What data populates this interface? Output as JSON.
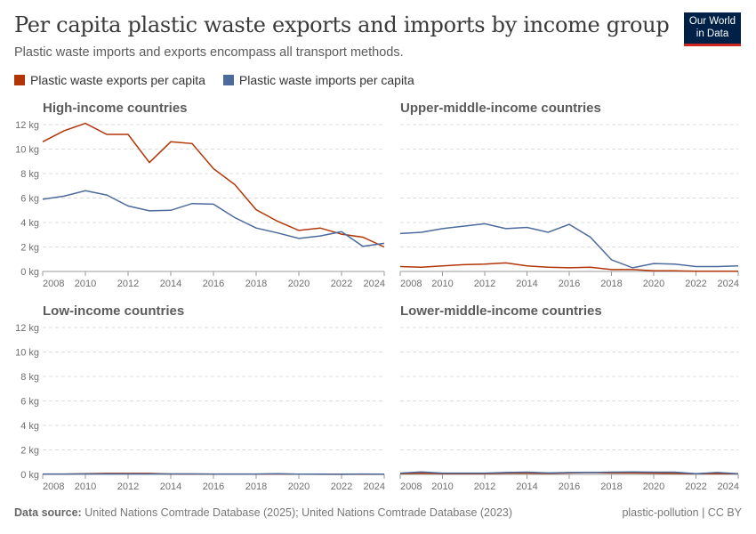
{
  "header": {
    "title": "Per capita plastic waste exports and imports by income group",
    "subtitle": "Plastic waste imports and exports encompass all transport methods.",
    "logo": "Our World in Data"
  },
  "legend": [
    {
      "label": "Plastic waste exports per capita",
      "color": "#b13507"
    },
    {
      "label": "Plastic waste imports per capita",
      "color": "#4c6a9c"
    }
  ],
  "footer": {
    "source_label": "Data source:",
    "source": "United Nations Comtrade Database (2025); United Nations Comtrade Database (2023)",
    "right": "plastic-pollution | CC BY"
  },
  "chart_data": [
    {
      "type": "line",
      "title": "High-income countries",
      "x": [
        2008,
        2009,
        2010,
        2011,
        2012,
        2013,
        2014,
        2015,
        2016,
        2017,
        2018,
        2019,
        2020,
        2021,
        2022,
        2023,
        2024
      ],
      "ylim": [
        0,
        12
      ],
      "yticks": [
        "0 kg",
        "2 kg",
        "4 kg",
        "6 kg",
        "8 kg",
        "10 kg",
        "12 kg"
      ],
      "xticks": [
        "2008",
        "2010",
        "2012",
        "2014",
        "2016",
        "2018",
        "2020",
        "2022",
        "2024"
      ],
      "grid": true,
      "series": [
        {
          "name": "Plastic waste exports per capita",
          "values": [
            10.6,
            11.5,
            12.1,
            11.2,
            11.2,
            8.9,
            10.6,
            10.45,
            8.4,
            7.1,
            5.05,
            4.1,
            3.35,
            3.55,
            3.05,
            2.8,
            2.0
          ]
        },
        {
          "name": "Plastic waste imports per capita",
          "values": [
            5.9,
            6.15,
            6.6,
            6.25,
            5.35,
            4.95,
            5.0,
            5.55,
            5.5,
            4.4,
            3.55,
            3.15,
            2.7,
            2.9,
            3.25,
            2.05,
            2.3
          ]
        }
      ]
    },
    {
      "type": "line",
      "title": "Upper-middle-income countries",
      "x": [
        2008,
        2009,
        2010,
        2011,
        2012,
        2013,
        2014,
        2015,
        2016,
        2017,
        2018,
        2019,
        2020,
        2021,
        2022,
        2023,
        2024
      ],
      "ylim": [
        0,
        12
      ],
      "xticks": [
        "2008",
        "2010",
        "2012",
        "2014",
        "2016",
        "2018",
        "2020",
        "2022",
        "2024"
      ],
      "grid": true,
      "series": [
        {
          "name": "Plastic waste exports per capita",
          "values": [
            0.4,
            0.35,
            0.45,
            0.55,
            0.6,
            0.7,
            0.45,
            0.35,
            0.3,
            0.35,
            0.15,
            0.15,
            0.05,
            0.05,
            0.02,
            0.02,
            0.02
          ]
        },
        {
          "name": "Plastic waste imports per capita",
          "values": [
            3.1,
            3.2,
            3.5,
            3.7,
            3.9,
            3.5,
            3.6,
            3.2,
            3.85,
            2.8,
            0.95,
            0.3,
            0.65,
            0.6,
            0.4,
            0.4,
            0.45
          ]
        }
      ]
    },
    {
      "type": "line",
      "title": "Low-income countries",
      "x": [
        2008,
        2009,
        2010,
        2011,
        2012,
        2013,
        2014,
        2015,
        2016,
        2017,
        2018,
        2019,
        2020,
        2021,
        2022,
        2023,
        2024
      ],
      "ylim": [
        0,
        12
      ],
      "yticks": [
        "0 kg",
        "2 kg",
        "4 kg",
        "6 kg",
        "8 kg",
        "10 kg",
        "12 kg"
      ],
      "xticks": [
        "2008",
        "2010",
        "2012",
        "2014",
        "2016",
        "2018",
        "2020",
        "2022",
        "2024"
      ],
      "grid": true,
      "series": [
        {
          "name": "Plastic waste exports per capita",
          "values": [
            0.02,
            0.02,
            0.05,
            0.08,
            0.08,
            0.08,
            0.03,
            0.03,
            0.02,
            0.02,
            0.02,
            0.03,
            0.02,
            0.01,
            0.01,
            0.01,
            0.01
          ]
        },
        {
          "name": "Plastic waste imports per capita",
          "values": [
            0.03,
            0.03,
            0.04,
            0.04,
            0.04,
            0.04,
            0.04,
            0.04,
            0.03,
            0.03,
            0.03,
            0.05,
            0.02,
            0.02,
            0.01,
            0.03,
            0.02
          ]
        }
      ]
    },
    {
      "type": "line",
      "title": "Lower-middle-income countries",
      "x": [
        2008,
        2009,
        2010,
        2011,
        2012,
        2013,
        2014,
        2015,
        2016,
        2017,
        2018,
        2019,
        2020,
        2021,
        2022,
        2023,
        2024
      ],
      "ylim": [
        0,
        12
      ],
      "xticks": [
        "2008",
        "2010",
        "2012",
        "2014",
        "2016",
        "2018",
        "2020",
        "2022",
        "2024"
      ],
      "grid": true,
      "series": [
        {
          "name": "Plastic waste exports per capita",
          "values": [
            0.05,
            0.1,
            0.05,
            0.06,
            0.06,
            0.1,
            0.1,
            0.08,
            0.12,
            0.15,
            0.12,
            0.12,
            0.1,
            0.08,
            0.05,
            0.06,
            0.05
          ]
        },
        {
          "name": "Plastic waste imports per capita",
          "values": [
            0.1,
            0.2,
            0.1,
            0.1,
            0.1,
            0.15,
            0.18,
            0.12,
            0.15,
            0.15,
            0.18,
            0.2,
            0.18,
            0.18,
            0.05,
            0.15,
            0.05
          ]
        }
      ]
    }
  ]
}
